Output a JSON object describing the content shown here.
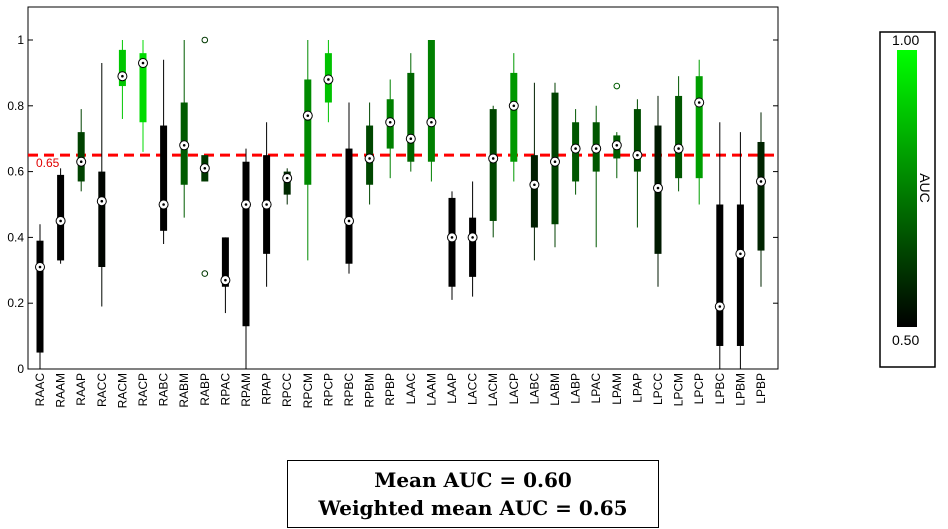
{
  "chart_data": {
    "type": "box",
    "categories": [
      "RAAC",
      "RAAM",
      "RAAP",
      "RACC",
      "RACM",
      "RACP",
      "RABC",
      "RABM",
      "RABP",
      "RPAC",
      "RPAM",
      "RPAP",
      "RPCC",
      "RPCM",
      "RPCP",
      "RPBC",
      "RPBM",
      "RPBP",
      "LAAC",
      "LAAM",
      "LAAP",
      "LACC",
      "LACM",
      "LACP",
      "LABC",
      "LABM",
      "LABP",
      "LPAC",
      "LPAM",
      "LPAP",
      "LPCC",
      "LPCM",
      "LPCP",
      "LPBC",
      "LPBM",
      "LPBP"
    ],
    "ylim": [
      0,
      1.0
    ],
    "yticks": [
      0,
      0.2,
      0.4,
      0.6,
      0.8,
      1.0
    ],
    "ytick_labels": [
      "0",
      "0.2",
      "0.4",
      "0.6",
      "0.8",
      "1"
    ],
    "boxes": [
      {
        "median": 0.31,
        "q1": 0.05,
        "q3": 0.39,
        "whisker_low": 0.0,
        "whisker_high": 0.44
      },
      {
        "median": 0.45,
        "q1": 0.33,
        "q3": 0.59,
        "whisker_low": 0.32,
        "whisker_high": 0.61
      },
      {
        "median": 0.63,
        "q1": 0.57,
        "q3": 0.72,
        "whisker_low": 0.54,
        "whisker_high": 0.79
      },
      {
        "median": 0.51,
        "q1": 0.31,
        "q3": 0.6,
        "whisker_low": 0.19,
        "whisker_high": 0.93
      },
      {
        "median": 0.89,
        "q1": 0.86,
        "q3": 0.97,
        "whisker_low": 0.76,
        "whisker_high": 1.0
      },
      {
        "median": 0.93,
        "q1": 0.75,
        "q3": 0.96,
        "whisker_low": 0.66,
        "whisker_high": 1.0
      },
      {
        "median": 0.5,
        "q1": 0.42,
        "q3": 0.74,
        "whisker_low": 0.38,
        "whisker_high": 0.94
      },
      {
        "median": 0.68,
        "q1": 0.56,
        "q3": 0.81,
        "whisker_low": 0.46,
        "whisker_high": 1.0
      },
      {
        "median": 0.61,
        "q1": 0.57,
        "q3": 0.65,
        "whisker_low": 0.57,
        "whisker_high": 0.65,
        "outliers": [
          1.0,
          0.29
        ]
      },
      {
        "median": 0.27,
        "q1": 0.25,
        "q3": 0.4,
        "whisker_low": 0.17,
        "whisker_high": 0.4
      },
      {
        "median": 0.5,
        "q1": 0.13,
        "q3": 0.63,
        "whisker_low": 0.0,
        "whisker_high": 0.67
      },
      {
        "median": 0.5,
        "q1": 0.35,
        "q3": 0.65,
        "whisker_low": 0.25,
        "whisker_high": 0.75
      },
      {
        "median": 0.58,
        "q1": 0.53,
        "q3": 0.6,
        "whisker_low": 0.5,
        "whisker_high": 0.61
      },
      {
        "median": 0.77,
        "q1": 0.56,
        "q3": 0.88,
        "whisker_low": 0.33,
        "whisker_high": 1.0
      },
      {
        "median": 0.88,
        "q1": 0.81,
        "q3": 0.96,
        "whisker_low": 0.75,
        "whisker_high": 1.0
      },
      {
        "median": 0.45,
        "q1": 0.32,
        "q3": 0.67,
        "whisker_low": 0.29,
        "whisker_high": 0.81
      },
      {
        "median": 0.64,
        "q1": 0.56,
        "q3": 0.74,
        "whisker_low": 0.5,
        "whisker_high": 0.81
      },
      {
        "median": 0.75,
        "q1": 0.67,
        "q3": 0.82,
        "whisker_low": 0.58,
        "whisker_high": 0.88
      },
      {
        "median": 0.7,
        "q1": 0.63,
        "q3": 0.9,
        "whisker_low": 0.6,
        "whisker_high": 0.96
      },
      {
        "median": 0.75,
        "q1": 0.63,
        "q3": 1.0,
        "whisker_low": 0.57,
        "whisker_high": 1.0
      },
      {
        "median": 0.4,
        "q1": 0.25,
        "q3": 0.52,
        "whisker_low": 0.21,
        "whisker_high": 0.54
      },
      {
        "median": 0.4,
        "q1": 0.28,
        "q3": 0.46,
        "whisker_low": 0.22,
        "whisker_high": 0.57
      },
      {
        "median": 0.64,
        "q1": 0.45,
        "q3": 0.79,
        "whisker_low": 0.4,
        "whisker_high": 0.8
      },
      {
        "median": 0.8,
        "q1": 0.63,
        "q3": 0.9,
        "whisker_low": 0.57,
        "whisker_high": 0.96
      },
      {
        "median": 0.56,
        "q1": 0.43,
        "q3": 0.65,
        "whisker_low": 0.33,
        "whisker_high": 0.87
      },
      {
        "median": 0.63,
        "q1": 0.44,
        "q3": 0.84,
        "whisker_low": 0.37,
        "whisker_high": 0.87
      },
      {
        "median": 0.67,
        "q1": 0.57,
        "q3": 0.75,
        "whisker_low": 0.53,
        "whisker_high": 0.79
      },
      {
        "median": 0.67,
        "q1": 0.6,
        "q3": 0.75,
        "whisker_low": 0.37,
        "whisker_high": 0.8
      },
      {
        "median": 0.68,
        "q1": 0.64,
        "q3": 0.71,
        "whisker_low": 0.58,
        "whisker_high": 0.72,
        "outliers": [
          0.86
        ]
      },
      {
        "median": 0.65,
        "q1": 0.6,
        "q3": 0.79,
        "whisker_low": 0.43,
        "whisker_high": 0.82
      },
      {
        "median": 0.55,
        "q1": 0.35,
        "q3": 0.74,
        "whisker_low": 0.25,
        "whisker_high": 0.83
      },
      {
        "median": 0.67,
        "q1": 0.58,
        "q3": 0.83,
        "whisker_low": 0.54,
        "whisker_high": 0.89
      },
      {
        "median": 0.81,
        "q1": 0.58,
        "q3": 0.89,
        "whisker_low": 0.5,
        "whisker_high": 0.94
      },
      {
        "median": 0.19,
        "q1": 0.07,
        "q3": 0.5,
        "whisker_low": 0.0,
        "whisker_high": 0.75
      },
      {
        "median": 0.35,
        "q1": 0.07,
        "q3": 0.5,
        "whisker_low": 0.0,
        "whisker_high": 0.72
      },
      {
        "median": 0.57,
        "q1": 0.36,
        "q3": 0.69,
        "whisker_low": 0.25,
        "whisker_high": 0.78
      }
    ],
    "reference_line": {
      "value": 0.65,
      "label": "0.65",
      "color": "#ff0000",
      "style": "dashed"
    },
    "colorbar": {
      "label": "AUC",
      "min": 0.5,
      "max": 1.0,
      "min_label": "0.50",
      "max_label": "1.00",
      "color_low": "#000000",
      "color_high": "#00ff00"
    },
    "grid": false
  },
  "summary": {
    "mean_line": "Mean AUC = 0.60",
    "weighted_line": "Weighted mean AUC = 0.65"
  }
}
